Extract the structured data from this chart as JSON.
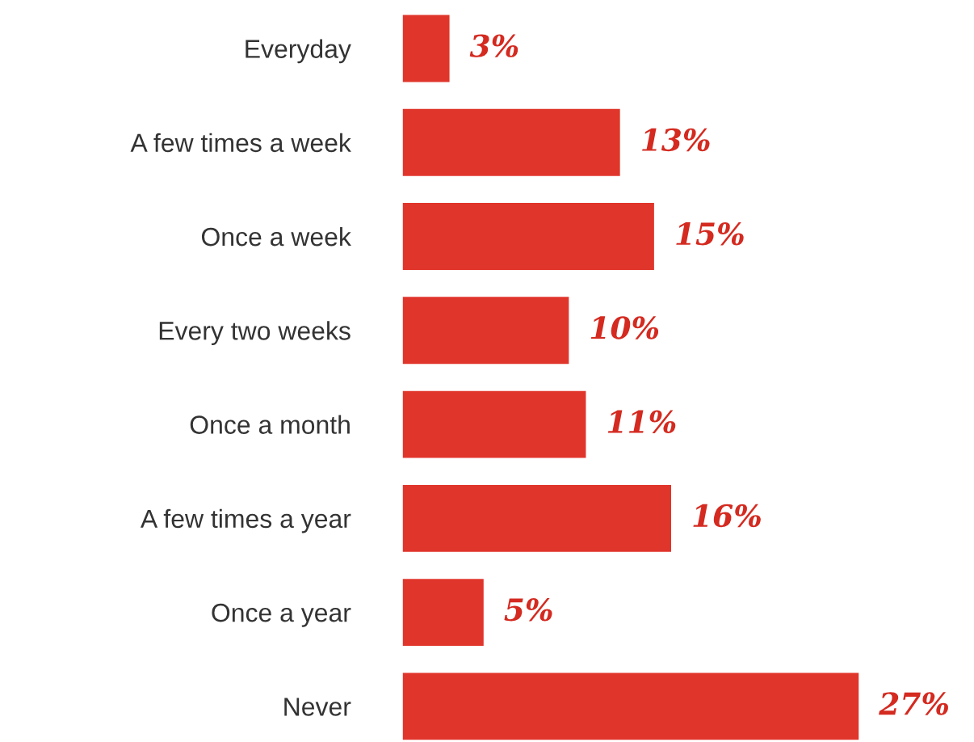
{
  "chart_data": {
    "type": "bar",
    "orientation": "horizontal",
    "categories": [
      "Everyday",
      "A few times a week",
      "Once a week",
      "Every two weeks",
      "Once a month",
      "A few times a year",
      "Once a year",
      "Never"
    ],
    "values": [
      3,
      13,
      15,
      10,
      11,
      16,
      5,
      27
    ],
    "color": "#e0352b",
    "value_labels": [
      "3%",
      "13%",
      "15%",
      "10%",
      "11%",
      "16%",
      "5%",
      "27%"
    ],
    "grid": false,
    "legend": false
  }
}
